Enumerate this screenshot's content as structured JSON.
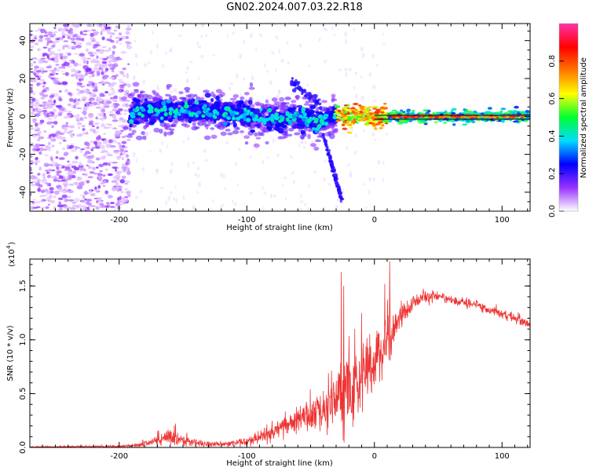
{
  "title": "GN02.2024.007.03.22.R18",
  "colors": {
    "snr_line": "#ee3333",
    "spectral_line": "#000000"
  },
  "chart_data": [
    {
      "type": "heatmap",
      "name": "spectrogram",
      "xlabel": "Height of straight line (km)",
      "ylabel": "Frequency (Hz)",
      "xlim": [
        -270,
        122
      ],
      "ylim": [
        -50,
        49
      ],
      "xticks": [
        -200,
        -100,
        0,
        100
      ],
      "yticks": [
        -40,
        -20,
        0,
        20,
        40
      ],
      "colorbar": {
        "label": "Normalized spectral amplitude",
        "range": [
          0,
          1
        ],
        "ticks": [
          "0.0",
          "0.2",
          "0.4",
          "0.6",
          "0.8"
        ],
        "colormap": [
          "#ffffff",
          "#9933ff",
          "#0000ff",
          "#00ddff",
          "#00ff33",
          "#ffff00",
          "#ff7700",
          "#ff0000",
          "#ff33aa"
        ]
      },
      "features": {
        "diffuse_noise_x_range": [
          -270,
          -192
        ],
        "scintillation_band_x_range": [
          -192,
          -30
        ],
        "scintillation_band_center_hz": [
          3,
          3,
          2,
          1,
          -2,
          0,
          -3,
          1
        ],
        "scintillation_band_center_x": [
          -190,
          -150,
          -120,
          -100,
          -80,
          -60,
          -45,
          -30
        ],
        "branch_descending": {
          "x": [
            -40,
            -25
          ],
          "y": [
            -10,
            -45
          ]
        },
        "branch_ascending": {
          "x": [
            -65,
            -42
          ],
          "y": [
            18,
            6
          ]
        },
        "line_of_sight_x_range": [
          -30,
          122
        ],
        "line_of_sight_hz": 0
      }
    },
    {
      "type": "line",
      "name": "snr",
      "xlabel": "Height of straight line (km)",
      "ylabel": "SNR (10 * v/v)",
      "ymultiplier": "(x10",
      "ymultiplier_exp": "4",
      "xlim": [
        -270,
        122
      ],
      "ylim": [
        0,
        1.75
      ],
      "xticks": [
        -200,
        -100,
        0,
        100
      ],
      "yticks": [
        "0.0",
        "0.5",
        "1.0",
        "1.5"
      ],
      "series_envelope": {
        "x": [
          -270,
          -200,
          -185,
          -170,
          -160,
          -150,
          -140,
          -120,
          -110,
          -100,
          -90,
          -80,
          -70,
          -60,
          -50,
          -40,
          -30,
          -20,
          -10,
          0,
          10,
          20,
          30,
          40,
          50,
          60,
          70,
          80,
          90,
          100,
          110,
          122
        ],
        "mean": [
          0.005,
          0.01,
          0.02,
          0.06,
          0.12,
          0.07,
          0.04,
          0.03,
          0.04,
          0.06,
          0.1,
          0.14,
          0.2,
          0.25,
          0.3,
          0.36,
          0.42,
          0.5,
          0.65,
          0.8,
          1.0,
          1.2,
          1.35,
          1.4,
          1.4,
          1.37,
          1.35,
          1.32,
          1.28,
          1.24,
          1.2,
          1.15
        ],
        "noise": [
          0.005,
          0.01,
          0.02,
          0.05,
          0.08,
          0.05,
          0.03,
          0.02,
          0.03,
          0.04,
          0.05,
          0.07,
          0.09,
          0.11,
          0.14,
          0.2,
          0.3,
          0.35,
          0.3,
          0.25,
          0.28,
          0.14,
          0.07,
          0.05,
          0.04,
          0.04,
          0.04,
          0.04,
          0.04,
          0.04,
          0.04,
          0.04
        ]
      },
      "peaks": [
        {
          "x": -26,
          "y": 1.63
        },
        {
          "x": -24,
          "y": 1.5
        },
        {
          "x": 12,
          "y": 1.73
        },
        {
          "x": 8,
          "y": 1.52
        },
        {
          "x": -10,
          "y": 1.25
        }
      ]
    }
  ]
}
